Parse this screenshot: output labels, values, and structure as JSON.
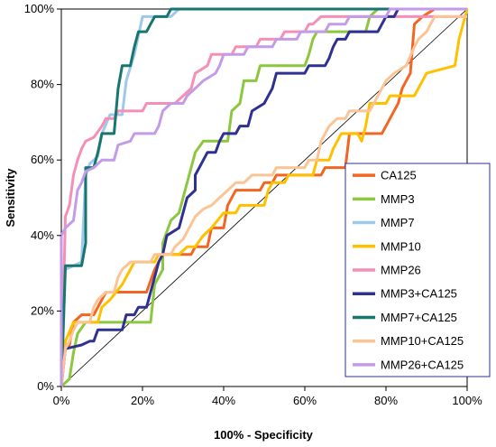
{
  "chart_data": {
    "type": "line",
    "xlabel": "100% - Specificity",
    "ylabel": "Sensitivity",
    "xlim": [
      0,
      100
    ],
    "ylim": [
      0,
      100
    ],
    "x_ticks": [
      "0%",
      "20%",
      "40%",
      "60%",
      "80%",
      "100%"
    ],
    "y_ticks": [
      "0%",
      "20%",
      "40%",
      "60%",
      "80%",
      "100%"
    ],
    "grid": false,
    "legend_position": "bottom-right",
    "reference_line": {
      "from": [
        0,
        0
      ],
      "to": [
        100,
        100
      ],
      "color": "#000000"
    },
    "series": [
      {
        "name": "CA125",
        "color": "#f26522",
        "points": [
          [
            0,
            10
          ],
          [
            2,
            11
          ],
          [
            3,
            17
          ],
          [
            5,
            19
          ],
          [
            8,
            19
          ],
          [
            9,
            21
          ],
          [
            11,
            25
          ],
          [
            15,
            25
          ],
          [
            21,
            25
          ],
          [
            23,
            31
          ],
          [
            25,
            35
          ],
          [
            32,
            35
          ],
          [
            33,
            37
          ],
          [
            36,
            37
          ],
          [
            37,
            42
          ],
          [
            40,
            42
          ],
          [
            41,
            48
          ],
          [
            43,
            52
          ],
          [
            49,
            52
          ],
          [
            50,
            54
          ],
          [
            52,
            54
          ],
          [
            53,
            56
          ],
          [
            64,
            56
          ],
          [
            65,
            58
          ],
          [
            70,
            58
          ],
          [
            71,
            67
          ],
          [
            79,
            67
          ],
          [
            81,
            71
          ],
          [
            83,
            75
          ],
          [
            84,
            79
          ],
          [
            86,
            83
          ],
          [
            87,
            96
          ],
          [
            89,
            98
          ],
          [
            92,
            100
          ],
          [
            100,
            100
          ]
        ]
      },
      {
        "name": "MMP3",
        "color": "#8dc63f",
        "points": [
          [
            0,
            0
          ],
          [
            2,
            2
          ],
          [
            3,
            9
          ],
          [
            4,
            14
          ],
          [
            6,
            17
          ],
          [
            22,
            17
          ],
          [
            23,
            27
          ],
          [
            25,
            31
          ],
          [
            25,
            38
          ],
          [
            27,
            44
          ],
          [
            29,
            46
          ],
          [
            30,
            50
          ],
          [
            32,
            58
          ],
          [
            33,
            62
          ],
          [
            35,
            65
          ],
          [
            41,
            65
          ],
          [
            42,
            73
          ],
          [
            44,
            75
          ],
          [
            45,
            81
          ],
          [
            48,
            81
          ],
          [
            49,
            85
          ],
          [
            60,
            85
          ],
          [
            61,
            88
          ],
          [
            62,
            92
          ],
          [
            63,
            94
          ],
          [
            75,
            94
          ],
          [
            76,
            98
          ],
          [
            78,
            100
          ],
          [
            100,
            100
          ]
        ]
      },
      {
        "name": "MMP7",
        "color": "#9ec8ec",
        "points": [
          [
            0,
            0
          ],
          [
            1,
            31
          ],
          [
            5,
            33
          ],
          [
            6,
            56
          ],
          [
            7,
            59
          ],
          [
            9,
            61
          ],
          [
            10,
            67
          ],
          [
            12,
            72
          ],
          [
            15,
            72
          ],
          [
            16,
            81
          ],
          [
            18,
            88
          ],
          [
            20,
            98
          ],
          [
            27,
            98
          ],
          [
            29,
            100
          ],
          [
            100,
            100
          ]
        ]
      },
      {
        "name": "MMP10",
        "color": "#ffc000",
        "points": [
          [
            0,
            0
          ],
          [
            1,
            12
          ],
          [
            3,
            17
          ],
          [
            9,
            17
          ],
          [
            10,
            21
          ],
          [
            12,
            23
          ],
          [
            15,
            27
          ],
          [
            18,
            33
          ],
          [
            23,
            33
          ],
          [
            24,
            35
          ],
          [
            29,
            35
          ],
          [
            31,
            37
          ],
          [
            33,
            37
          ],
          [
            35,
            40
          ],
          [
            37,
            42
          ],
          [
            40,
            46
          ],
          [
            43,
            46
          ],
          [
            44,
            48
          ],
          [
            50,
            48
          ],
          [
            51,
            52
          ],
          [
            52,
            54
          ],
          [
            55,
            54
          ],
          [
            56,
            56
          ],
          [
            62,
            56
          ],
          [
            63,
            60
          ],
          [
            66,
            60
          ],
          [
            67,
            63
          ],
          [
            68,
            65
          ],
          [
            69,
            67
          ],
          [
            73,
            67
          ],
          [
            74,
            65
          ],
          [
            75,
            69
          ],
          [
            76,
            75
          ],
          [
            80,
            75
          ],
          [
            81,
            77
          ],
          [
            87,
            77
          ],
          [
            88,
            79
          ],
          [
            89,
            81
          ],
          [
            90,
            83
          ],
          [
            97,
            85
          ],
          [
            98,
            92
          ],
          [
            100,
            100
          ]
        ]
      },
      {
        "name": "MMP26",
        "color": "#f68fb5",
        "points": [
          [
            0,
            0
          ],
          [
            1,
            45
          ],
          [
            2,
            48
          ],
          [
            3,
            56
          ],
          [
            4,
            60
          ],
          [
            5,
            63
          ],
          [
            6,
            65
          ],
          [
            8,
            66
          ],
          [
            10,
            69
          ],
          [
            11,
            71
          ],
          [
            13,
            71
          ],
          [
            14,
            73
          ],
          [
            20,
            73
          ],
          [
            21,
            75
          ],
          [
            28,
            75
          ],
          [
            30,
            77
          ],
          [
            32,
            79
          ],
          [
            33,
            83
          ],
          [
            36,
            85
          ],
          [
            37,
            88
          ],
          [
            42,
            88
          ],
          [
            43,
            90
          ],
          [
            48,
            90
          ],
          [
            49,
            92
          ],
          [
            54,
            92
          ],
          [
            55,
            94
          ],
          [
            60,
            94
          ],
          [
            61,
            96
          ],
          [
            62,
            96
          ],
          [
            64,
            98
          ],
          [
            100,
            98
          ]
        ]
      },
      {
        "name": "MMP3+CA125",
        "color": "#2e3192",
        "points": [
          [
            0,
            0
          ],
          [
            1,
            10
          ],
          [
            5,
            11
          ],
          [
            7,
            12
          ],
          [
            8,
            12
          ],
          [
            9,
            15
          ],
          [
            15,
            15
          ],
          [
            16,
            19
          ],
          [
            18,
            19
          ],
          [
            19,
            21
          ],
          [
            21,
            21
          ],
          [
            22,
            25
          ],
          [
            24,
            33
          ],
          [
            25,
            35
          ],
          [
            26,
            40
          ],
          [
            29,
            42
          ],
          [
            31,
            50
          ],
          [
            33,
            52
          ],
          [
            33,
            56
          ],
          [
            34,
            58
          ],
          [
            35,
            60
          ],
          [
            36,
            62
          ],
          [
            38,
            62
          ],
          [
            39,
            65
          ],
          [
            40,
            67
          ],
          [
            43,
            67
          ],
          [
            44,
            69
          ],
          [
            46,
            69
          ],
          [
            47,
            73
          ],
          [
            50,
            75
          ],
          [
            51,
            77
          ],
          [
            52,
            79
          ],
          [
            53,
            83
          ],
          [
            60,
            83
          ],
          [
            61,
            85
          ],
          [
            65,
            85
          ],
          [
            66,
            87
          ],
          [
            67,
            90
          ],
          [
            68,
            92
          ],
          [
            70,
            92
          ],
          [
            71,
            94
          ],
          [
            78,
            94
          ],
          [
            79,
            96
          ],
          [
            80,
            98
          ],
          [
            82,
            98
          ],
          [
            83,
            100
          ],
          [
            100,
            100
          ]
        ]
      },
      {
        "name": "MMP7+CA125",
        "color": "#17766e",
        "points": [
          [
            0,
            0
          ],
          [
            1,
            32
          ],
          [
            5,
            32
          ],
          [
            6,
            38
          ],
          [
            6,
            58
          ],
          [
            8,
            58
          ],
          [
            9,
            62
          ],
          [
            10,
            67
          ],
          [
            13,
            67
          ],
          [
            14,
            79
          ],
          [
            15,
            85
          ],
          [
            17,
            85
          ],
          [
            18,
            90
          ],
          [
            19,
            94
          ],
          [
            21,
            94
          ],
          [
            22,
            96
          ],
          [
            23,
            98
          ],
          [
            26,
            98
          ],
          [
            27,
            100
          ],
          [
            100,
            100
          ]
        ]
      },
      {
        "name": "MMP10+CA125",
        "color": "#fbc495",
        "points": [
          [
            0,
            0
          ],
          [
            1,
            10
          ],
          [
            2,
            12
          ],
          [
            3,
            15
          ],
          [
            4,
            17
          ],
          [
            7,
            17
          ],
          [
            8,
            21
          ],
          [
            9,
            23
          ],
          [
            11,
            25
          ],
          [
            13,
            25
          ],
          [
            14,
            29
          ],
          [
            15,
            31
          ],
          [
            17,
            33
          ],
          [
            22,
            33
          ],
          [
            23,
            35
          ],
          [
            27,
            35
          ],
          [
            28,
            37
          ],
          [
            30,
            39
          ],
          [
            31,
            41
          ],
          [
            32,
            43
          ],
          [
            33,
            45
          ],
          [
            35,
            47
          ],
          [
            37,
            48
          ],
          [
            39,
            50
          ],
          [
            41,
            52
          ],
          [
            43,
            54
          ],
          [
            45,
            54
          ],
          [
            47,
            56
          ],
          [
            52,
            56
          ],
          [
            53,
            58
          ],
          [
            60,
            58
          ],
          [
            61,
            60
          ],
          [
            63,
            60
          ],
          [
            64,
            65
          ],
          [
            65,
            67
          ],
          [
            66,
            69
          ],
          [
            68,
            71
          ],
          [
            70,
            71
          ],
          [
            71,
            73
          ],
          [
            76,
            73
          ],
          [
            77,
            75
          ],
          [
            79,
            79
          ],
          [
            80,
            81
          ],
          [
            82,
            83
          ],
          [
            85,
            85
          ],
          [
            87,
            90
          ],
          [
            88,
            92
          ],
          [
            90,
            94
          ],
          [
            91,
            96
          ],
          [
            92,
            98
          ],
          [
            100,
            98
          ]
        ]
      },
      {
        "name": "MMP26+CA125",
        "color": "#c39be8",
        "points": [
          [
            0,
            0
          ],
          [
            0,
            40
          ],
          [
            1,
            42
          ],
          [
            3,
            44
          ],
          [
            4,
            52
          ],
          [
            5,
            54
          ],
          [
            6,
            57
          ],
          [
            8,
            58
          ],
          [
            10,
            60
          ],
          [
            13,
            60
          ],
          [
            14,
            64
          ],
          [
            17,
            65
          ],
          [
            18,
            67
          ],
          [
            23,
            67
          ],
          [
            24,
            69
          ],
          [
            25,
            73
          ],
          [
            27,
            75
          ],
          [
            30,
            75
          ],
          [
            31,
            77
          ],
          [
            33,
            79
          ],
          [
            35,
            81
          ],
          [
            38,
            83
          ],
          [
            39,
            85
          ],
          [
            40,
            88
          ],
          [
            45,
            88
          ],
          [
            46,
            90
          ],
          [
            52,
            90
          ],
          [
            53,
            92
          ],
          [
            58,
            92
          ],
          [
            59,
            94
          ],
          [
            65,
            94
          ],
          [
            66,
            96
          ],
          [
            70,
            96
          ],
          [
            71,
            98
          ],
          [
            80,
            98
          ],
          [
            81,
            100
          ],
          [
            100,
            100
          ]
        ]
      }
    ]
  }
}
